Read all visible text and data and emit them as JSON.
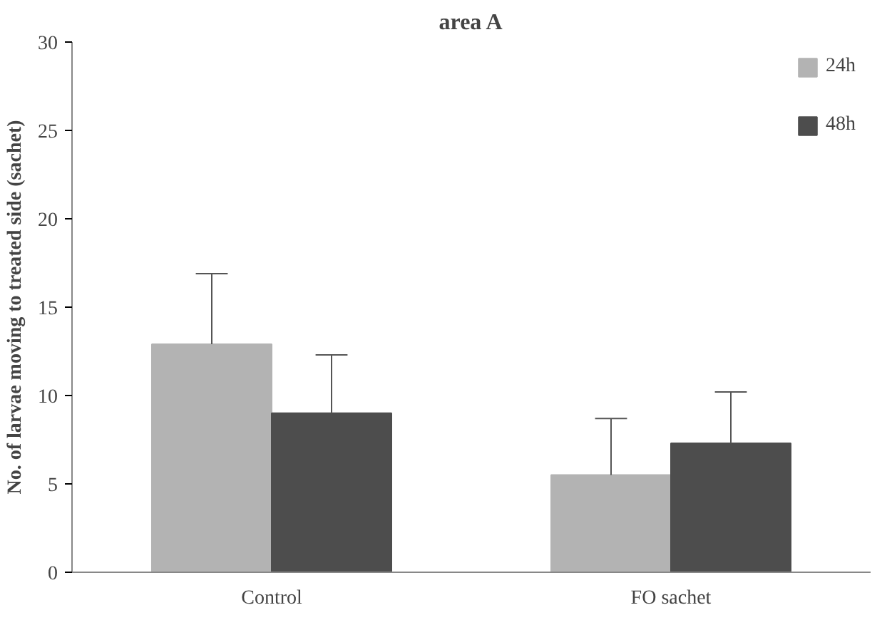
{
  "chart_data": {
    "type": "bar",
    "title": "area A",
    "ylabel": "No. of larvae moving to treated side (sachet)",
    "categories": [
      "Control",
      "FO sachet"
    ],
    "series": [
      {
        "name": "24h",
        "color": "#b3b3b3",
        "values": [
          12.9,
          5.5
        ],
        "errors": [
          [
            12.9,
            16.9
          ],
          [
            5.5,
            8.7
          ]
        ]
      },
      {
        "name": "48h",
        "color": "#4d4d4d",
        "values": [
          9.0,
          7.3
        ],
        "errors": [
          [
            9.0,
            12.3
          ],
          [
            7.3,
            10.2
          ]
        ]
      }
    ],
    "ylim": [
      0,
      30
    ],
    "yticks": [
      0,
      5,
      10,
      15,
      20,
      25,
      30
    ],
    "grid": false,
    "legend": "top right"
  }
}
